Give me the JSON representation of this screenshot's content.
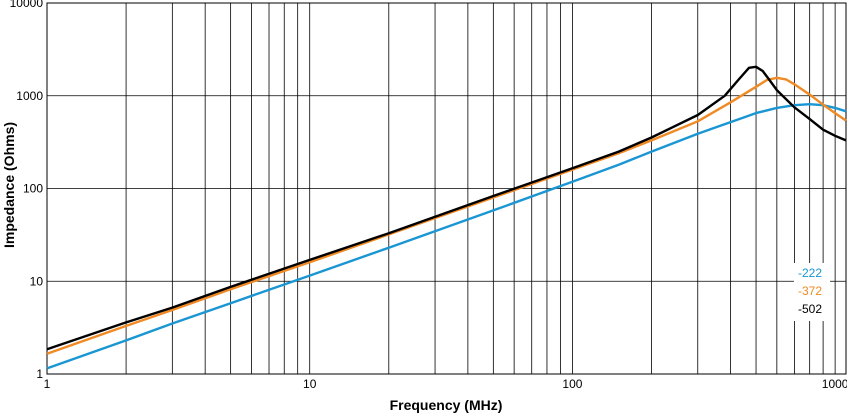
{
  "chart_data": {
    "type": "line",
    "xlabel": "Frequency (MHz)",
    "ylabel": "Impedance (Ohms)",
    "xscale": "log",
    "yscale": "log",
    "xlim": [
      1,
      1100
    ],
    "ylim": [
      1,
      10000
    ],
    "grid": true,
    "legend_position": "right",
    "x_ticks": [
      {
        "value": 1,
        "label": "1"
      },
      {
        "value": 10,
        "label": "10"
      },
      {
        "value": 100,
        "label": "100"
      },
      {
        "value": 1000,
        "label": "1000"
      }
    ],
    "y_ticks": [
      {
        "value": 1,
        "label": "1"
      },
      {
        "value": 10,
        "label": "10"
      },
      {
        "value": 100,
        "label": "100"
      },
      {
        "value": 1000,
        "label": "1000"
      },
      {
        "value": 10000,
        "label": "10000"
      }
    ],
    "series": [
      {
        "name": "-222",
        "color": "#1a96d4",
        "points": [
          [
            1,
            1.15
          ],
          [
            2,
            2.3
          ],
          [
            3,
            3.5
          ],
          [
            5,
            5.8
          ],
          [
            10,
            11.5
          ],
          [
            20,
            23
          ],
          [
            50,
            58
          ],
          [
            100,
            118
          ],
          [
            150,
            180
          ],
          [
            200,
            250
          ],
          [
            300,
            390
          ],
          [
            400,
            520
          ],
          [
            500,
            650
          ],
          [
            600,
            740
          ],
          [
            700,
            790
          ],
          [
            800,
            810
          ],
          [
            900,
            790
          ],
          [
            1000,
            740
          ],
          [
            1100,
            680
          ]
        ]
      },
      {
        "name": "-372",
        "color": "#f08a24",
        "points": [
          [
            1,
            1.65
          ],
          [
            2,
            3.3
          ],
          [
            3,
            4.9
          ],
          [
            5,
            8.2
          ],
          [
            10,
            16
          ],
          [
            20,
            32
          ],
          [
            50,
            80
          ],
          [
            100,
            160
          ],
          [
            150,
            240
          ],
          [
            200,
            330
          ],
          [
            300,
            530
          ],
          [
            400,
            850
          ],
          [
            500,
            1250
          ],
          [
            550,
            1480
          ],
          [
            600,
            1560
          ],
          [
            650,
            1500
          ],
          [
            700,
            1330
          ],
          [
            800,
            1030
          ],
          [
            900,
            800
          ],
          [
            1000,
            650
          ],
          [
            1100,
            540
          ]
        ]
      },
      {
        "name": "-502",
        "color": "#000000",
        "points": [
          [
            1,
            1.85
          ],
          [
            2,
            3.6
          ],
          [
            3,
            5.2
          ],
          [
            5,
            8.7
          ],
          [
            10,
            17
          ],
          [
            20,
            33
          ],
          [
            50,
            83
          ],
          [
            100,
            165
          ],
          [
            150,
            250
          ],
          [
            200,
            355
          ],
          [
            300,
            620
          ],
          [
            380,
            1000
          ],
          [
            430,
            1500
          ],
          [
            470,
            2000
          ],
          [
            500,
            2050
          ],
          [
            530,
            1850
          ],
          [
            560,
            1500
          ],
          [
            600,
            1150
          ],
          [
            700,
            750
          ],
          [
            800,
            560
          ],
          [
            900,
            430
          ],
          [
            1000,
            370
          ],
          [
            1100,
            330
          ]
        ]
      }
    ]
  }
}
